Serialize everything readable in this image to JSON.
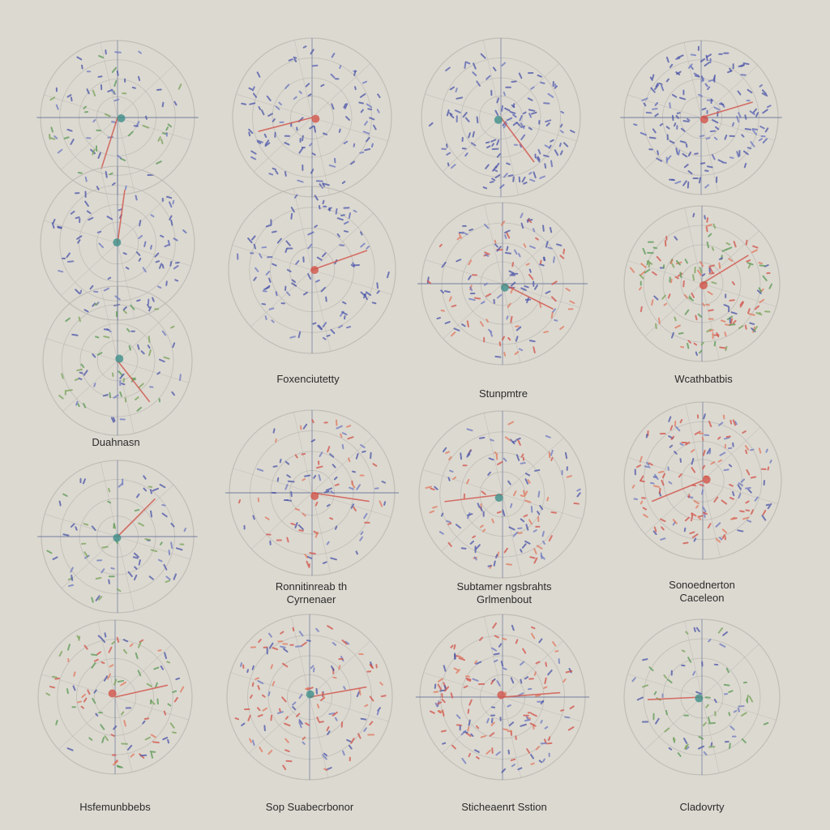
{
  "chart_data": {
    "type": "scatter",
    "title": "",
    "colors": {
      "background": "#dcd9d1",
      "ring": "#b9b6b0",
      "axis": "#4a5a8a",
      "marks": [
        "#4b56a8",
        "#4b56a8",
        "#6f7ac0",
        "#d2544a",
        "#e07a5f",
        "#5b9a55",
        "#3f8f8a",
        "#c9a13b"
      ]
    },
    "panels": [
      {
        "label": "",
        "color_mix": "blue-green",
        "highlights": [
          "pink-ray",
          "yellow-dot"
        ]
      },
      {
        "label": "",
        "color_mix": "blue",
        "highlights": [
          "red-ray",
          "green-cluster"
        ]
      },
      {
        "label": "",
        "color_mix": "blue",
        "highlights": [
          "orange-fan",
          "red-dot"
        ]
      },
      {
        "label": "",
        "color_mix": "blue",
        "highlights": [
          "red-ray",
          "orange-dots"
        ]
      },
      {
        "label": "",
        "color_mix": "blue",
        "highlights": [
          "red-cluster"
        ]
      },
      {
        "label": "",
        "color_mix": "blue",
        "highlights": [
          "red-cluster",
          "orange-dots"
        ]
      },
      {
        "label": "Wcathbatbis",
        "color_mix": "blue-red",
        "highlights": [
          "pink-ray",
          "cyan-dot"
        ]
      },
      {
        "label": "Duahnasn",
        "color_mix": "red-green",
        "highlights": [
          "pink-fan",
          "teal-dot"
        ]
      },
      {
        "label": "Foxenciutetty",
        "color_mix": "blue-green",
        "highlights": [
          "green-dots"
        ]
      },
      {
        "label": "Stunpmtre",
        "color_mix": "blue-red",
        "highlights": [
          "red-dots"
        ]
      },
      {
        "label": "Ronnitinreab th Cyrnenaer",
        "color_mix": "blue-red",
        "highlights": [
          "orange-cluster"
        ]
      },
      {
        "label": "Subtamer ngsbrahts Grlmenbout",
        "color_mix": "red-blue",
        "highlights": [
          "red-cluster",
          "yellow-dot"
        ]
      },
      {
        "label": "Sonoednerton Caceleon",
        "color_mix": "blue-green",
        "highlights": [
          "red-ray",
          "teal-dot"
        ]
      },
      {
        "label": "Hsfemunbbebs",
        "color_mix": "red-green",
        "highlights": [
          "green-ray"
        ]
      },
      {
        "label": "Sop Suabecrbonor",
        "color_mix": "red-blue",
        "highlights": [
          "green-square",
          "red-dots"
        ]
      },
      {
        "label": "Sticheaenrt Sstion",
        "color_mix": "red-blue",
        "highlights": [
          "red-cluster",
          "green-dots"
        ]
      },
      {
        "label": "Cladovrty",
        "color_mix": "blue-green",
        "highlights": [
          "teal-cluster",
          "red-dot"
        ]
      }
    ]
  }
}
